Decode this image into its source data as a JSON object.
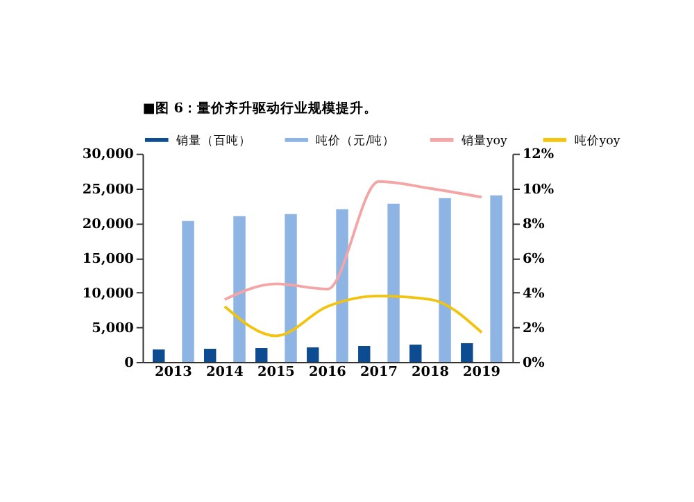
{
  "chart_data": {
    "type": "bar",
    "title": "■图 6：量价齐升驱动行业规模提升。",
    "categories": [
      "2013",
      "2014",
      "2015",
      "2016",
      "2017",
      "2018",
      "2019"
    ],
    "series": [
      {
        "name": "销量（百吨）",
        "color": "#0e4c92",
        "values": [
          1800,
          1900,
          2000,
          2100,
          2300,
          2500,
          2700
        ]
      },
      {
        "name": "吨价（元/吨）",
        "color": "#8db4e2",
        "values": [
          20300,
          21000,
          21300,
          22000,
          22800,
          23600,
          24000
        ]
      },
      {
        "name": "销量yoy",
        "type": "line",
        "axis": "y2",
        "color": "#f4a6a6",
        "values": [
          null,
          3.6,
          4.5,
          4.2,
          10.4,
          10.0,
          9.5
        ]
      },
      {
        "name": "吨价yoy",
        "type": "line",
        "axis": "y2",
        "color": "#f2c40f",
        "values": [
          null,
          3.2,
          1.5,
          3.2,
          3.8,
          3.6,
          1.7
        ]
      }
    ],
    "ylim": [
      0,
      30000
    ],
    "yticks": [
      {
        "value": 0,
        "label": "0"
      },
      {
        "value": 5000,
        "label": "5,000"
      },
      {
        "value": 10000,
        "label": "10,000"
      },
      {
        "value": 15000,
        "label": "15,000"
      },
      {
        "value": 20000,
        "label": "20,000"
      },
      {
        "value": 25000,
        "label": "25,000"
      },
      {
        "value": 30000,
        "label": "30,000"
      }
    ],
    "y2lim": [
      0,
      12
    ],
    "y2ticks": [
      {
        "value": 0,
        "label": "0%"
      },
      {
        "value": 2,
        "label": "2%"
      },
      {
        "value": 4,
        "label": "4%"
      },
      {
        "value": 6,
        "label": "6%"
      },
      {
        "value": 8,
        "label": "8%"
      },
      {
        "value": 10,
        "label": "10%"
      },
      {
        "value": 12,
        "label": "12%"
      }
    ],
    "legend": "top",
    "grid": false
  }
}
